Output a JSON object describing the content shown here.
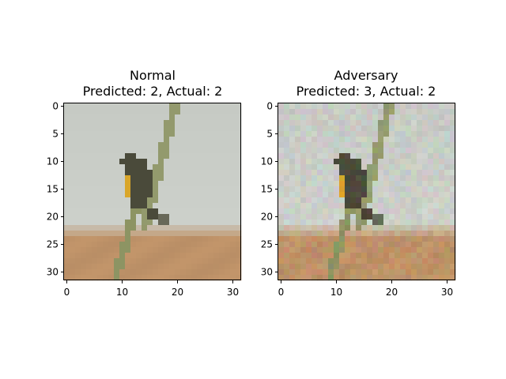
{
  "chart_data": [
    {
      "type": "image",
      "panel": "left",
      "title_line1": "Normal",
      "title_line2": "Predicted: 2, Actual: 2",
      "predicted": 2,
      "actual": 2,
      "image_size": [
        32,
        32
      ],
      "xticks": [
        0,
        10,
        20,
        30
      ],
      "yticks": [
        0,
        5,
        10,
        15,
        20,
        25,
        30
      ],
      "xlim": [
        -0.5,
        31.5
      ],
      "ylim": [
        31.5,
        -0.5
      ],
      "noise": false
    },
    {
      "type": "image",
      "panel": "right",
      "title_line1": "Adversary",
      "title_line2": "Predicted: 3, Actual: 2",
      "predicted": 3,
      "actual": 2,
      "image_size": [
        32,
        32
      ],
      "xticks": [
        0,
        10,
        20,
        30
      ],
      "yticks": [
        0,
        5,
        10,
        15,
        20,
        25,
        30
      ],
      "xlim": [
        -0.5,
        31.5
      ],
      "ylim": [
        31.5,
        -0.5
      ],
      "noise": true
    }
  ],
  "colors": {
    "sky": "#c9cdc7",
    "ground": "#c2956a",
    "ground_dark": "#a9825e",
    "stem": "#8d9463",
    "bird_dark": "#4a4a3a",
    "bird_yellow": "#d9a62a"
  }
}
